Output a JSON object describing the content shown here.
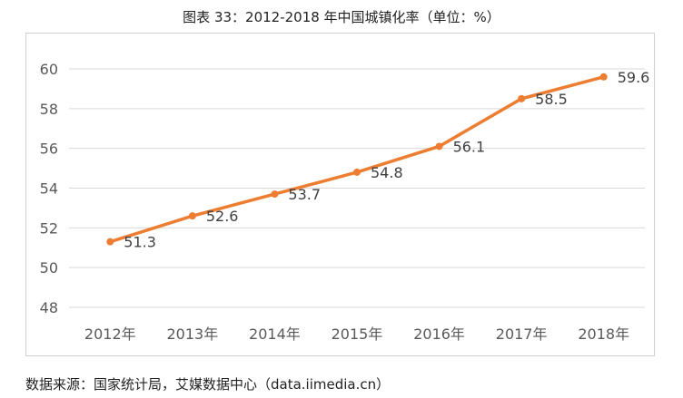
{
  "title": "图表 33：2012-2018 年中国城镇化率（单位：%）",
  "source": "数据来源：国家统计局，艾媒数据中心（data.iimedia.cn）",
  "chart_data": {
    "type": "line",
    "title": "图表 33：2012-2018 年中国城镇化率（单位：%）",
    "categories": [
      "2012年",
      "2013年",
      "2014年",
      "2015年",
      "2016年",
      "2017年",
      "2018年"
    ],
    "series": [
      {
        "name": "城镇化率",
        "values": [
          51.3,
          52.6,
          53.7,
          54.8,
          56.1,
          58.5,
          59.6
        ]
      }
    ],
    "y_ticks": [
      48,
      50,
      52,
      54,
      56,
      58,
      60
    ],
    "ylim": [
      48,
      60
    ],
    "grid": true,
    "legend": "none",
    "colors": {
      "line": "#ed7d31",
      "grid": "#d9d9d9",
      "tick_text": "#595959",
      "label_text": "#404040"
    }
  }
}
